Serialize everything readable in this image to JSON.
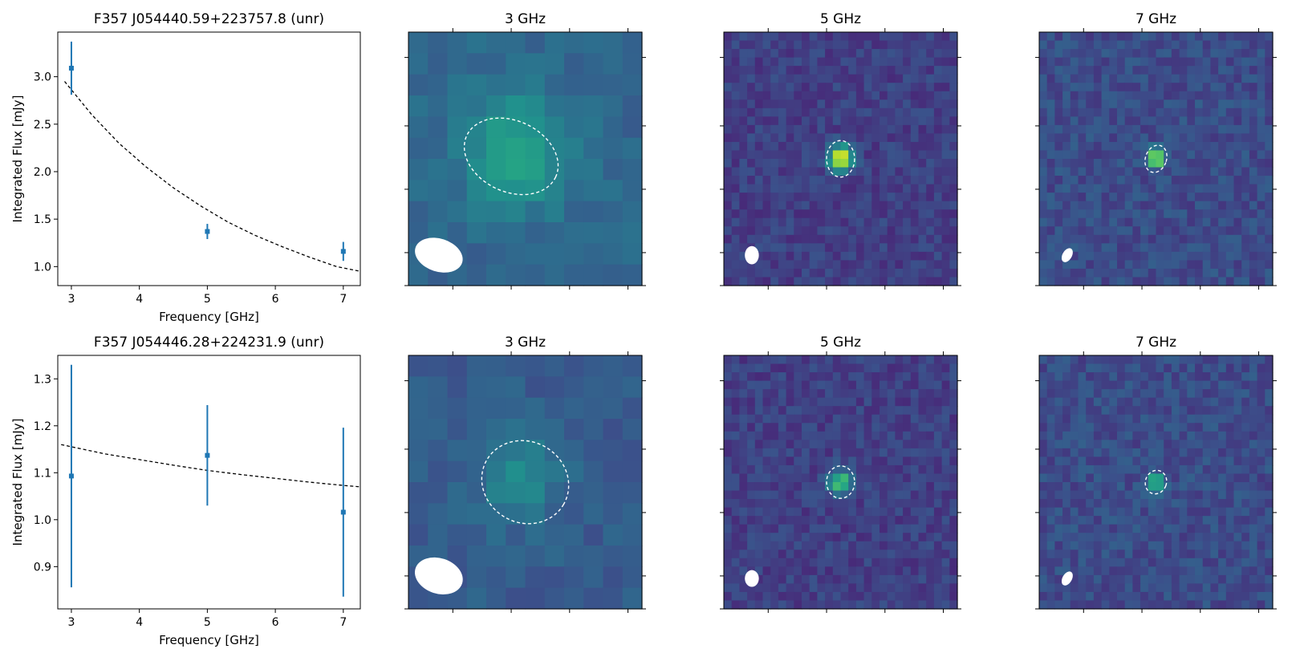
{
  "figure": {
    "rows": [
      {
        "source_title": "F357 J054440.59+223757.8 (unr)",
        "image_titles": [
          "3 GHz",
          "5 GHz",
          "7 GHz"
        ]
      },
      {
        "source_title": "F357 J054446.28+224231.9 (unr)",
        "image_titles": [
          "3 GHz",
          "5 GHz",
          "7 GHz"
        ]
      }
    ]
  },
  "colors": {
    "points": "#1f77b4",
    "fit": "#000000",
    "viridis_dark": "#440154",
    "viridis_mid": "#21918c",
    "viridis_bright": "#fde725"
  },
  "chart_data": [
    {
      "type": "scatter",
      "title": "F357 J054440.59+223757.8 (unr)",
      "xlabel": "Frequency [GHz]",
      "ylabel": "Integrated Flux [mJy]",
      "xlim": [
        2.8,
        7.25
      ],
      "ylim": [
        0.8,
        3.47
      ],
      "xticks": [
        3,
        4,
        5,
        6,
        7
      ],
      "yticks": [
        1.0,
        1.5,
        2.0,
        2.5,
        3.0
      ],
      "ytick_labels": [
        "1.0",
        "1.5",
        "2.0",
        "2.5",
        "3.0"
      ],
      "points": [
        {
          "x": 3,
          "y": 3.09,
          "yerr": 0.28
        },
        {
          "x": 5,
          "y": 1.37,
          "yerr": 0.08
        },
        {
          "x": 7,
          "y": 1.16,
          "yerr": 0.1
        }
      ],
      "fit": {
        "style": "dashed",
        "x": [
          2.9,
          3.3,
          3.7,
          4.1,
          4.5,
          4.9,
          5.3,
          5.7,
          6.1,
          6.5,
          6.9,
          7.25
        ],
        "y": [
          2.95,
          2.6,
          2.3,
          2.05,
          1.83,
          1.64,
          1.47,
          1.33,
          1.21,
          1.1,
          1.0,
          0.95
        ]
      }
    },
    {
      "type": "scatter",
      "title": "F357 J054446.28+224231.9 (unr)",
      "xlabel": "Frequency [GHz]",
      "ylabel": "Integrated Flux [mJy]",
      "xlim": [
        2.8,
        7.25
      ],
      "ylim": [
        0.81,
        1.35
      ],
      "xticks": [
        3,
        4,
        5,
        6,
        7
      ],
      "yticks": [
        0.9,
        1.0,
        1.1,
        1.2,
        1.3
      ],
      "ytick_labels": [
        "0.9",
        "1.0",
        "1.1",
        "1.2",
        "1.3"
      ],
      "points": [
        {
          "x": 3,
          "y": 1.093,
          "yerr": 0.237
        },
        {
          "x": 5,
          "y": 1.137,
          "yerr": 0.107
        },
        {
          "x": 7,
          "y": 1.016,
          "yerr": 0.18
        }
      ],
      "fit": {
        "style": "dashed",
        "x": [
          2.85,
          3.5,
          4.0,
          4.5,
          5.0,
          5.5,
          6.0,
          6.5,
          7.0,
          7.25
        ],
        "y": [
          1.16,
          1.14,
          1.128,
          1.116,
          1.105,
          1.096,
          1.088,
          1.08,
          1.073,
          1.07
        ]
      }
    },
    {
      "type": "heatmap",
      "title": "3 GHz",
      "colormap": "viridis",
      "source_fit": {
        "cx": 0.44,
        "cy": 0.49,
        "rx": 0.21,
        "ry": 0.14,
        "angle_deg": 25
      },
      "beam": {
        "cx": 0.13,
        "cy": 0.88,
        "rx": 0.105,
        "ry": 0.065,
        "angle_deg": 18
      },
      "peak": {
        "cx": 0.45,
        "cy": 0.48
      }
    },
    {
      "type": "heatmap",
      "title": "5 GHz",
      "colormap": "viridis",
      "source_fit": {
        "cx": 0.5,
        "cy": 0.5,
        "rx": 0.06,
        "ry": 0.072,
        "angle_deg": 0
      },
      "beam": {
        "cx": 0.12,
        "cy": 0.88,
        "rx": 0.03,
        "ry": 0.036,
        "angle_deg": 0
      },
      "peak": {
        "cx": 0.5,
        "cy": 0.5
      }
    },
    {
      "type": "heatmap",
      "title": "7 GHz",
      "colormap": "viridis",
      "source_fit": {
        "cx": 0.5,
        "cy": 0.5,
        "rx": 0.045,
        "ry": 0.055,
        "angle_deg": 20
      },
      "beam": {
        "cx": 0.12,
        "cy": 0.88,
        "rx": 0.02,
        "ry": 0.03,
        "angle_deg": 30
      },
      "peak": {
        "cx": 0.5,
        "cy": 0.5
      }
    },
    {
      "type": "heatmap",
      "title": "3 GHz",
      "colormap": "viridis",
      "source_fit": {
        "cx": 0.5,
        "cy": 0.5,
        "rx": 0.19,
        "ry": 0.16,
        "angle_deg": 30
      },
      "beam": {
        "cx": 0.13,
        "cy": 0.87,
        "rx": 0.105,
        "ry": 0.07,
        "angle_deg": 18
      },
      "peak": {
        "cx": 0.48,
        "cy": 0.47
      }
    },
    {
      "type": "heatmap",
      "title": "5 GHz",
      "colormap": "viridis",
      "source_fit": {
        "cx": 0.5,
        "cy": 0.5,
        "rx": 0.06,
        "ry": 0.064,
        "angle_deg": 0
      },
      "beam": {
        "cx": 0.12,
        "cy": 0.88,
        "rx": 0.03,
        "ry": 0.033,
        "angle_deg": 0
      },
      "peak": {
        "cx": 0.5,
        "cy": 0.5
      }
    },
    {
      "type": "heatmap",
      "title": "7 GHz",
      "colormap": "viridis",
      "source_fit": {
        "cx": 0.5,
        "cy": 0.5,
        "rx": 0.045,
        "ry": 0.047,
        "angle_deg": 20
      },
      "beam": {
        "cx": 0.12,
        "cy": 0.88,
        "rx": 0.02,
        "ry": 0.03,
        "angle_deg": 30
      },
      "peak": {
        "cx": 0.5,
        "cy": 0.5
      }
    }
  ]
}
